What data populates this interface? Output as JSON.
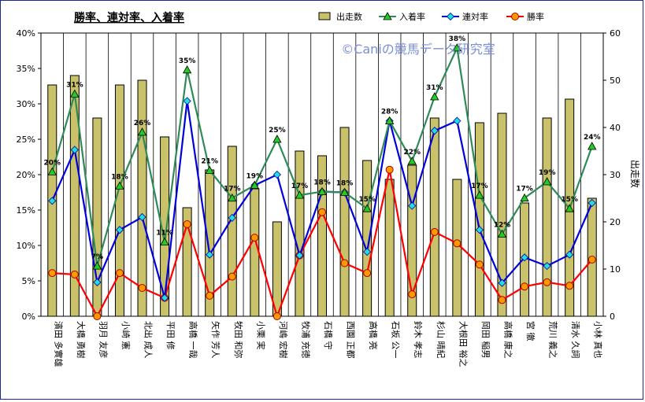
{
  "chart_data": {
    "type": "bar+line",
    "title": "勝率、連対率、入着率",
    "watermark": "©Caniの競馬データ研究室",
    "categories": [
      "濱田 多實雄",
      "大橋 勇樹",
      "羽月 友彦",
      "小崎 憲",
      "北出 成人",
      "平田 修",
      "高橋 一哉",
      "矢作 芳人",
      "牧田 和弥",
      "小栗 実",
      "河嶋 宏樹",
      "牧浦 充徳",
      "石橋 守",
      "西園 正都",
      "高橋 亮",
      "石坂 公一",
      "鈴木 孝志",
      "杉山 晴紀",
      "大根田 裕之",
      "岡田 稲男",
      "高橋 康之",
      "宮 徹",
      "荒川 義之",
      "清水 久詞",
      "小林 真也"
    ],
    "y_left": {
      "min": 0,
      "max": 0.4,
      "step": 0.05,
      "ticks": [
        "0%",
        "5%",
        "10%",
        "15%",
        "20%",
        "25%",
        "30%",
        "35%",
        "40%"
      ]
    },
    "y_right": {
      "min": 0,
      "max": 60,
      "step": 10,
      "ticks": [
        "0",
        "10",
        "20",
        "30",
        "40",
        "50",
        "60"
      ],
      "label": "出走数"
    },
    "series": [
      {
        "name": "出走数",
        "kind": "bar",
        "axis": "right",
        "color": "#c9c26a",
        "values": [
          49,
          51,
          42,
          49,
          50,
          38,
          23,
          31,
          36,
          27,
          20,
          35,
          34,
          40,
          33,
          29,
          32,
          42,
          29,
          41,
          43,
          24,
          42,
          46,
          25
        ]
      },
      {
        "name": "入着率",
        "kind": "line",
        "axis": "left",
        "color": "#2e8b57",
        "marker": "triangle",
        "marker_color": "#22cc22",
        "values": [
          0.204,
          0.314,
          0.071,
          0.184,
          0.26,
          0.105,
          0.348,
          0.206,
          0.167,
          0.185,
          0.25,
          0.171,
          0.176,
          0.175,
          0.152,
          0.276,
          0.219,
          0.31,
          0.379,
          0.171,
          0.116,
          0.167,
          0.19,
          0.152,
          0.24
        ]
      },
      {
        "name": "連対率",
        "kind": "line",
        "axis": "left",
        "color": "#0000dd",
        "marker": "diamond",
        "marker_color": "#22dddd",
        "values": [
          0.163,
          0.235,
          0.048,
          0.122,
          0.14,
          0.026,
          0.304,
          0.087,
          0.139,
          0.185,
          0.2,
          0.086,
          0.176,
          0.175,
          0.091,
          0.276,
          0.156,
          0.262,
          0.276,
          0.122,
          0.047,
          0.083,
          0.071,
          0.087,
          0.16
        ]
      },
      {
        "name": "勝率",
        "kind": "line",
        "axis": "left",
        "color": "#ff0000",
        "marker": "circle",
        "marker_color": "#ff9900",
        "values": [
          0.061,
          0.059,
          0.0,
          0.061,
          0.04,
          0.026,
          0.13,
          0.029,
          0.056,
          0.111,
          0.0,
          0.086,
          0.147,
          0.075,
          0.061,
          0.207,
          0.031,
          0.119,
          0.103,
          0.073,
          0.023,
          0.042,
          0.048,
          0.043,
          0.08
        ]
      }
    ],
    "data_labels": {
      "series": "入着率",
      "values": [
        "20%",
        "31%",
        "7%",
        "18%",
        "26%",
        "11%",
        "35%",
        "21%",
        "17%",
        "19%",
        "25%",
        "17%",
        "18%",
        "18%",
        "15%",
        "28%",
        "22%",
        "31%",
        "38%",
        "17%",
        "12%",
        "17%",
        "19%",
        "15%",
        "24%"
      ]
    },
    "legend": {
      "placement": "top",
      "items": [
        "出走数",
        "入着率",
        "連対率",
        "勝率"
      ]
    },
    "grid": {
      "vertical": true,
      "horizontal": false
    }
  }
}
